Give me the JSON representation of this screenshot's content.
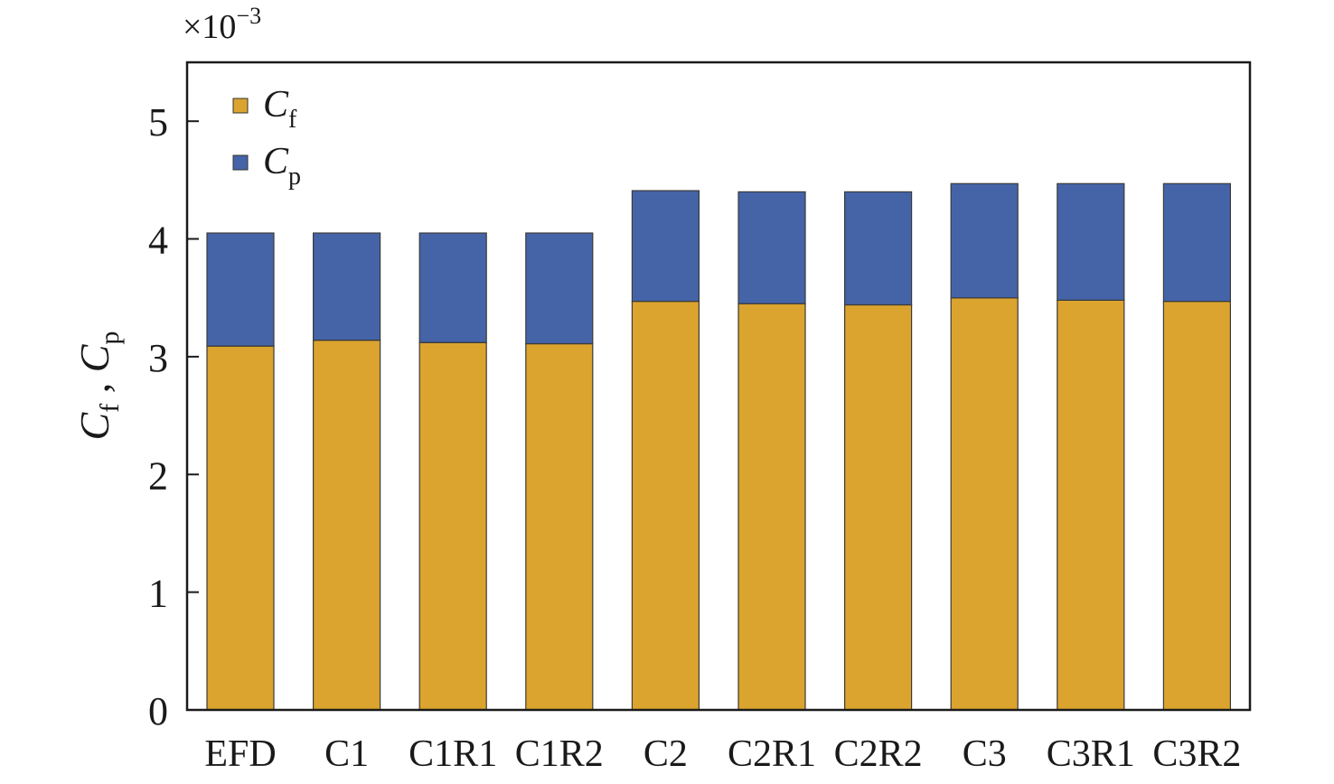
{
  "chart_data": {
    "type": "bar",
    "stacked": true,
    "categories": [
      "EFD",
      "C1",
      "C1R1",
      "C1R2",
      "C2",
      "C2R1",
      "C2R2",
      "C3",
      "C3R1",
      "C3R2"
    ],
    "series": [
      {
        "name": "Cf",
        "name_main": "C",
        "name_sub": "f",
        "color": "#DBA42E",
        "values": [
          3.09,
          3.14,
          3.12,
          3.11,
          3.47,
          3.45,
          3.44,
          3.5,
          3.48,
          3.47
        ]
      },
      {
        "name": "Cp",
        "name_main": "C",
        "name_sub": "p",
        "color": "#4564A8",
        "values": [
          0.96,
          0.91,
          0.93,
          0.94,
          0.94,
          0.95,
          0.96,
          0.97,
          0.99,
          1.0
        ]
      }
    ],
    "ylim": [
      0,
      5.5
    ],
    "yticks": [
      "0",
      "1",
      "2",
      "3",
      "4",
      "5"
    ],
    "ylabel": {
      "c1": "C",
      "s1": "f",
      "sep": " , ",
      "c2": "C",
      "s2": "p"
    },
    "y_multiplier": {
      "prefix": "×10",
      "exponent": "−3"
    },
    "legend": "top-left",
    "grid": false
  }
}
